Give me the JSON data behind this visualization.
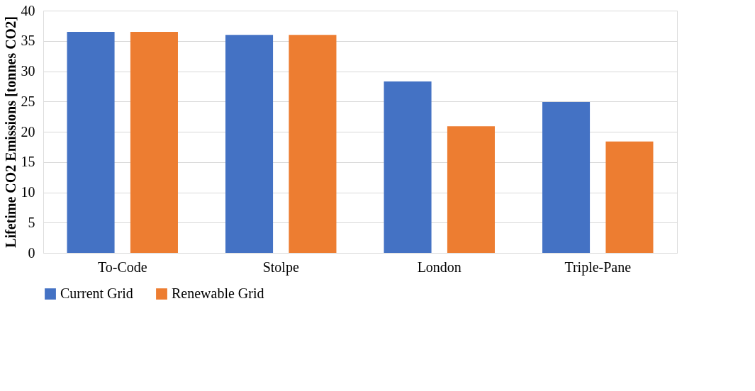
{
  "chart_data": {
    "type": "bar",
    "ylabel": "Lifetime CO2 Emissions [tonnes CO2]",
    "categories": [
      "To-Code",
      "Stolpe",
      "London",
      "Triple-Pane"
    ],
    "series": [
      {
        "name": "Current Grid",
        "color": "#4472c4",
        "values": [
          36.5,
          36.0,
          28.3,
          24.9
        ]
      },
      {
        "name": "Renewable Grid",
        "color": "#ed7d31",
        "values": [
          36.5,
          36.0,
          20.9,
          18.4
        ]
      }
    ],
    "ylim": [
      0,
      40
    ],
    "yticks": [
      0,
      5,
      10,
      15,
      20,
      25,
      30,
      35,
      40
    ],
    "grid": "y",
    "legend": "bottom"
  }
}
